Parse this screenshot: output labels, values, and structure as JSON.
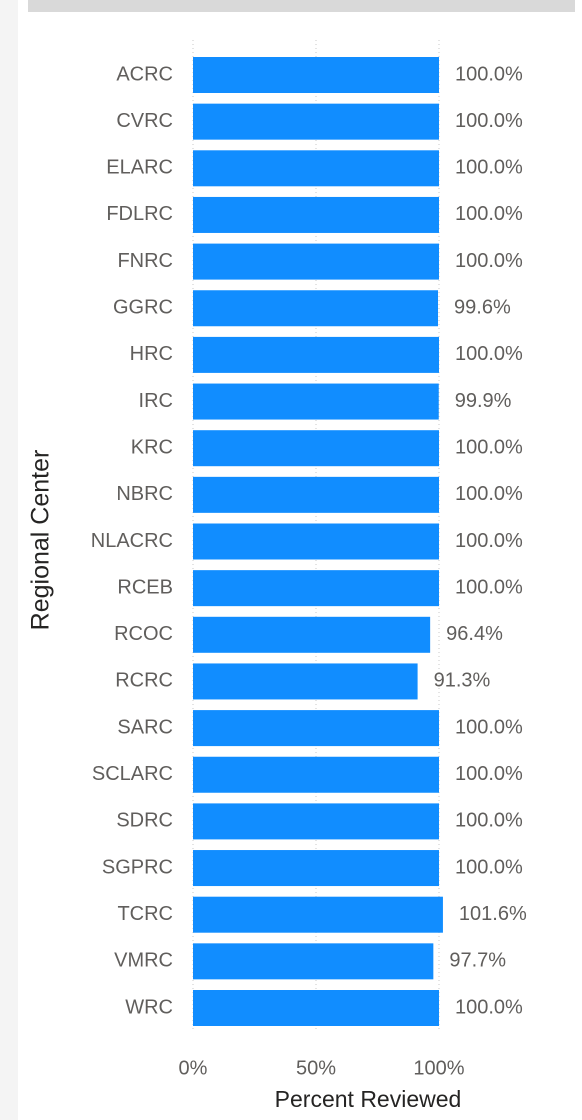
{
  "chart_data": {
    "type": "bar",
    "orientation": "horizontal",
    "categories": [
      "ACRC",
      "CVRC",
      "ELARC",
      "FDLRC",
      "FNRC",
      "GGRC",
      "HRC",
      "IRC",
      "KRC",
      "NBRC",
      "NLACRC",
      "RCEB",
      "RCOC",
      "RCRC",
      "SARC",
      "SCLARC",
      "SDRC",
      "SGPRC",
      "TCRC",
      "VMRC",
      "WRC"
    ],
    "values": [
      100,
      100,
      100,
      100,
      100,
      99.6,
      100,
      99.9,
      100,
      100,
      100,
      100,
      96.4,
      91.3,
      100,
      100,
      100,
      100,
      101.6,
      97.7,
      100
    ],
    "value_labels": [
      "100.0%",
      "100.0%",
      "100.0%",
      "100.0%",
      "100.0%",
      "99.6%",
      "100.0%",
      "99.9%",
      "100.0%",
      "100.0%",
      "100.0%",
      "100.0%",
      "96.4%",
      "91.3%",
      "100.0%",
      "100.0%",
      "100.0%",
      "100.0%",
      "101.6%",
      "97.7%",
      "100.0%"
    ],
    "color": "#118dff",
    "xlim": [
      0,
      100
    ],
    "xticks": [
      {
        "value": 0,
        "label": "0%"
      },
      {
        "value": 50,
        "label": "50%"
      },
      {
        "value": 100,
        "label": "100%"
      }
    ],
    "grid": true,
    "xlabel": "Percent Reviewed",
    "ylabel": "Regional Center"
  }
}
